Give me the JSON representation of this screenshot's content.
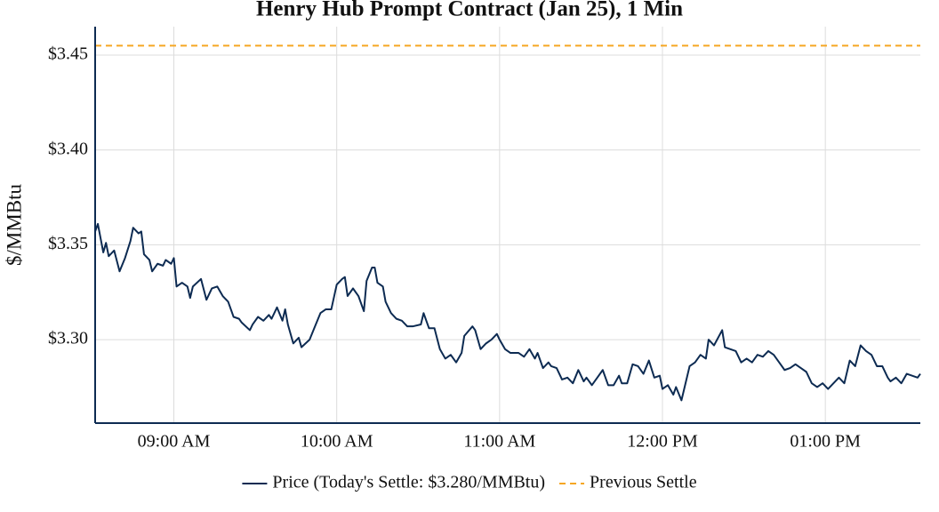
{
  "chart_data": {
    "type": "line",
    "title": "Henry Hub Prompt Contract (Jan 25), 1 Min",
    "y_label": "$/MMBtu",
    "x": [
      "08:31",
      "08:32",
      "08:34",
      "08:35",
      "08:36",
      "08:38",
      "08:40",
      "08:42",
      "08:44",
      "08:45",
      "08:47",
      "08:48",
      "08:49",
      "08:51",
      "08:52",
      "08:54",
      "08:56",
      "08:57",
      "08:59",
      "09:00",
      "09:01",
      "09:03",
      "09:05",
      "09:06",
      "09:07",
      "09:10",
      "09:12",
      "09:14",
      "09:16",
      "09:18",
      "09:20",
      "09:22",
      "09:24",
      "09:25",
      "09:28",
      "09:29",
      "09:31",
      "09:33",
      "09:35",
      "09:36",
      "09:38",
      "09:40",
      "09:41",
      "09:42",
      "09:44",
      "09:46",
      "09:47",
      "09:50",
      "09:52",
      "09:54",
      "09:56",
      "09:58",
      "10:00",
      "10:02",
      "10:03",
      "10:04",
      "10:06",
      "10:08",
      "10:10",
      "10:11",
      "10:13",
      "10:14",
      "10:15",
      "10:17",
      "10:18",
      "10:20",
      "10:22",
      "10:24",
      "10:26",
      "10:28",
      "10:31",
      "10:32",
      "10:34",
      "10:36",
      "10:38",
      "10:40",
      "10:42",
      "10:44",
      "10:46",
      "10:47",
      "10:50",
      "10:51",
      "10:53",
      "10:55",
      "10:57",
      "10:59",
      "11:00",
      "11:02",
      "11:04",
      "11:07",
      "11:09",
      "11:11",
      "11:13",
      "11:14",
      "11:16",
      "11:18",
      "11:19",
      "11:21",
      "11:23",
      "11:25",
      "11:27",
      "11:29",
      "11:31",
      "11:32",
      "11:34",
      "11:36",
      "11:38",
      "11:40",
      "11:42",
      "11:44",
      "11:45",
      "11:47",
      "11:49",
      "11:51",
      "11:53",
      "11:55",
      "11:57",
      "11:59",
      "12:00",
      "12:02",
      "12:04",
      "12:05",
      "12:07",
      "12:08",
      "12:10",
      "12:12",
      "12:14",
      "12:16",
      "12:17",
      "12:19",
      "12:22",
      "12:23",
      "12:25",
      "12:27",
      "12:29",
      "12:31",
      "12:33",
      "12:35",
      "12:37",
      "12:39",
      "12:41",
      "12:43",
      "12:45",
      "12:47",
      "12:49",
      "12:51",
      "12:53",
      "12:55",
      "12:57",
      "12:59",
      "13:01",
      "13:03",
      "13:05",
      "13:07",
      "13:09",
      "13:11",
      "13:13",
      "13:15",
      "13:17",
      "13:19",
      "13:21",
      "13:23",
      "13:24",
      "13:26",
      "13:28",
      "13:30",
      "13:32",
      "13:34",
      "13:35"
    ],
    "series": [
      {
        "name": "Price (Today's Settle: $3.280/MMBtu)",
        "color": "#0d2b52",
        "values": [
          3.357,
          3.361,
          3.346,
          3.351,
          3.344,
          3.347,
          3.336,
          3.343,
          3.352,
          3.359,
          3.356,
          3.357,
          3.345,
          3.342,
          3.336,
          3.34,
          3.339,
          3.342,
          3.34,
          3.343,
          3.328,
          3.33,
          3.328,
          3.322,
          3.328,
          3.332,
          3.321,
          3.327,
          3.328,
          3.323,
          3.32,
          3.312,
          3.311,
          3.309,
          3.305,
          3.308,
          3.312,
          3.31,
          3.313,
          3.311,
          3.317,
          3.31,
          3.316,
          3.308,
          3.298,
          3.301,
          3.296,
          3.3,
          3.307,
          3.314,
          3.316,
          3.316,
          3.329,
          3.332,
          3.333,
          3.323,
          3.327,
          3.323,
          3.315,
          3.331,
          3.338,
          3.338,
          3.33,
          3.328,
          3.32,
          3.314,
          3.311,
          3.31,
          3.307,
          3.307,
          3.308,
          3.314,
          3.306,
          3.306,
          3.295,
          3.29,
          3.292,
          3.288,
          3.293,
          3.302,
          3.307,
          3.305,
          3.295,
          3.298,
          3.3,
          3.303,
          3.3,
          3.295,
          3.293,
          3.293,
          3.291,
          3.295,
          3.29,
          3.293,
          3.285,
          3.288,
          3.286,
          3.285,
          3.279,
          3.28,
          3.277,
          3.284,
          3.278,
          3.28,
          3.276,
          3.28,
          3.284,
          3.276,
          3.276,
          3.281,
          3.277,
          3.277,
          3.287,
          3.286,
          3.282,
          3.289,
          3.28,
          3.281,
          3.274,
          3.276,
          3.271,
          3.275,
          3.268,
          3.274,
          3.286,
          3.288,
          3.292,
          3.29,
          3.3,
          3.297,
          3.305,
          3.296,
          3.295,
          3.294,
          3.288,
          3.29,
          3.288,
          3.292,
          3.291,
          3.294,
          3.292,
          3.288,
          3.284,
          3.285,
          3.287,
          3.285,
          3.283,
          3.277,
          3.275,
          3.277,
          3.274,
          3.277,
          3.28,
          3.277,
          3.289,
          3.286,
          3.297,
          3.294,
          3.292,
          3.286,
          3.286,
          3.28,
          3.278,
          3.28,
          3.277,
          3.282,
          3.281,
          3.28,
          3.282
        ]
      }
    ],
    "reference_line": {
      "name": "Previous Settle",
      "value": 3.455,
      "color": "#f5a623",
      "dashed": true
    },
    "xlim": [
      "08:31",
      "13:35"
    ],
    "xticks": [
      {
        "value": "09:00",
        "label": "09:00 AM"
      },
      {
        "value": "10:00",
        "label": "10:00 AM"
      },
      {
        "value": "11:00",
        "label": "11:00 AM"
      },
      {
        "value": "12:00",
        "label": "12:00 PM"
      },
      {
        "value": "13:00",
        "label": "01:00 PM"
      }
    ],
    "ylim": [
      3.256,
      3.465
    ],
    "yticks": [
      {
        "value": 3.3,
        "label": "$3.30"
      },
      {
        "value": 3.35,
        "label": "$3.35"
      },
      {
        "value": 3.4,
        "label": "$3.40"
      },
      {
        "value": 3.45,
        "label": "$3.45"
      }
    ],
    "grid": true,
    "legend": "bottom"
  }
}
